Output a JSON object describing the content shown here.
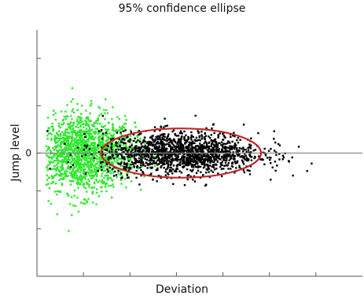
{
  "chart_data": {
    "type": "scatter",
    "title": "95% confidence ellipse",
    "xlabel": "Deviation",
    "ylabel": "Jump level",
    "xlim": [
      0,
      7
    ],
    "ylim": [
      -2.6,
      2.6
    ],
    "x_ticks": [
      1,
      2,
      3,
      4,
      5,
      6
    ],
    "y_ticks": [
      -1.6,
      -0.8,
      0,
      1.0,
      2.0
    ],
    "y_tick_labels": [
      "",
      "",
      "0",
      "",
      ""
    ],
    "zero_line": true,
    "grid": false,
    "series": [
      {
        "color": "#2ee82e",
        "description": "green cluster",
        "center": [
          1.0,
          0.0
        ],
        "spread": [
          0.55,
          0.33
        ],
        "count": 1600
      },
      {
        "color": "#000000",
        "description": "black cluster",
        "center": [
          3.1,
          0.0
        ],
        "spread": [
          0.85,
          0.22
        ],
        "count": 1600
      }
    ],
    "annotations": [
      {
        "type": "ellipse",
        "label": "95% confidence ellipse",
        "center": [
          3.1,
          0.0
        ],
        "radii": [
          1.72,
          0.52
        ],
        "color": "#c0282a"
      }
    ]
  }
}
